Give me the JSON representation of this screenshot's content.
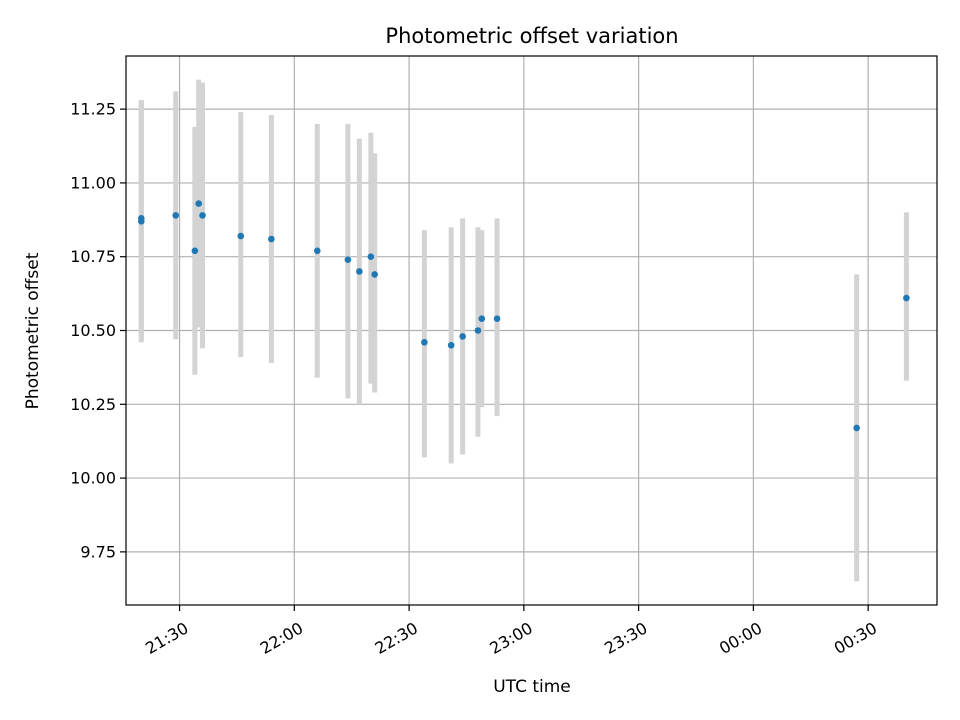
{
  "chart_data": {
    "type": "scatter",
    "title": "Photometric offset variation",
    "xlabel": "UTC time",
    "ylabel": "Photometric offset",
    "x_axis": {
      "unit": "time",
      "min": "21:16",
      "max": "00:48",
      "ticks": [
        "21:30",
        "22:00",
        "22:30",
        "23:00",
        "23:30",
        "00:00",
        "00:30"
      ]
    },
    "y_axis": {
      "min": 9.57,
      "max": 11.43,
      "ticks": [
        "9.75",
        "10.00",
        "10.25",
        "10.50",
        "10.75",
        "11.00",
        "11.25"
      ]
    },
    "grid": true,
    "colors": {
      "marker": "#1f77b4",
      "errorbar": "#d3d3d3",
      "grid": "#b0b0b0"
    },
    "series": [
      {
        "points": [
          {
            "x": "21:20",
            "y": 10.87,
            "ymin": 10.46,
            "ymax": 11.28
          },
          {
            "x": "21:20",
            "y": 10.88,
            "ymin": 10.47,
            "ymax": 11.28
          },
          {
            "x": "21:29",
            "y": 10.89,
            "ymin": 10.47,
            "ymax": 11.31
          },
          {
            "x": "21:34",
            "y": 10.77,
            "ymin": 10.35,
            "ymax": 11.19
          },
          {
            "x": "21:35",
            "y": 10.93,
            "ymin": 10.51,
            "ymax": 11.35
          },
          {
            "x": "21:36",
            "y": 10.89,
            "ymin": 10.44,
            "ymax": 11.34
          },
          {
            "x": "21:46",
            "y": 10.82,
            "ymin": 10.41,
            "ymax": 11.24
          },
          {
            "x": "21:54",
            "y": 10.81,
            "ymin": 10.39,
            "ymax": 11.23
          },
          {
            "x": "22:06",
            "y": 10.77,
            "ymin": 10.34,
            "ymax": 11.2
          },
          {
            "x": "22:14",
            "y": 10.74,
            "ymin": 10.27,
            "ymax": 11.2
          },
          {
            "x": "22:17",
            "y": 10.7,
            "ymin": 10.25,
            "ymax": 11.15
          },
          {
            "x": "22:20",
            "y": 10.75,
            "ymin": 10.32,
            "ymax": 11.17
          },
          {
            "x": "22:21",
            "y": 10.69,
            "ymin": 10.29,
            "ymax": 11.1
          },
          {
            "x": "22:34",
            "y": 10.46,
            "ymin": 10.07,
            "ymax": 10.84
          },
          {
            "x": "22:41",
            "y": 10.45,
            "ymin": 10.05,
            "ymax": 10.85
          },
          {
            "x": "22:44",
            "y": 10.48,
            "ymin": 10.08,
            "ymax": 10.88
          },
          {
            "x": "22:48",
            "y": 10.5,
            "ymin": 10.14,
            "ymax": 10.85
          },
          {
            "x": "22:49",
            "y": 10.54,
            "ymin": 10.24,
            "ymax": 10.84
          },
          {
            "x": "22:53",
            "y": 10.54,
            "ymin": 10.21,
            "ymax": 10.88
          },
          {
            "x": "00:27",
            "y": 10.17,
            "ymin": 9.65,
            "ymax": 10.69
          },
          {
            "x": "00:40",
            "y": 10.61,
            "ymin": 10.33,
            "ymax": 10.9
          }
        ]
      }
    ]
  }
}
